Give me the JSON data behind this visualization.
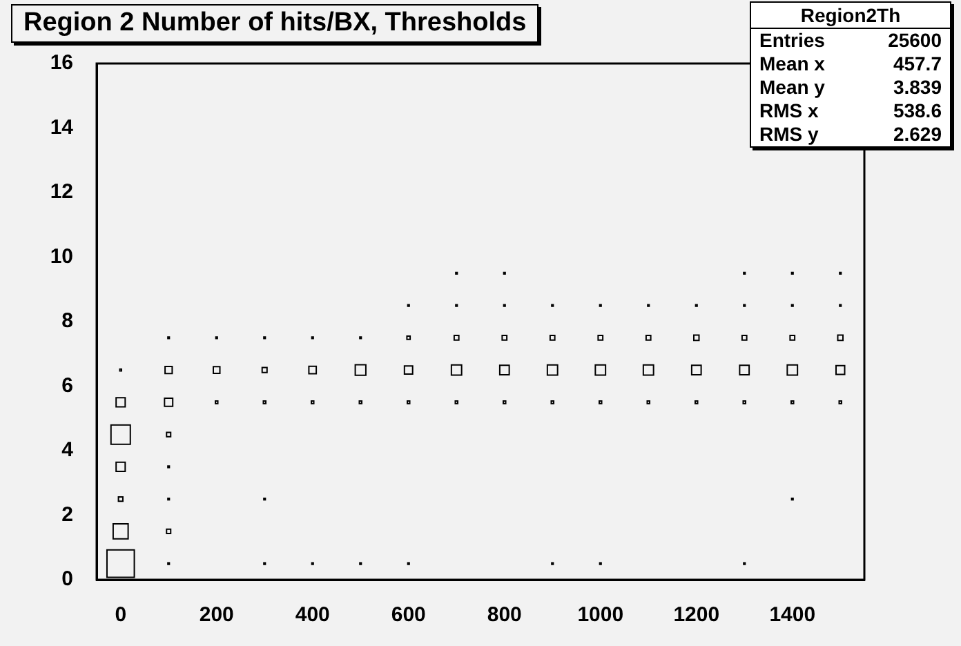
{
  "chart_data": {
    "type": "bubble",
    "title": "Region 2 Number of hits/BX, Thresholds",
    "annotations": [
      "Region2Th",
      "Entries 25600",
      "Mean x 457.7",
      "Mean y 3.839",
      "RMS x 538.6",
      "RMS y 2.629"
    ],
    "xlim": [
      -50,
      1550
    ],
    "xticks": [
      0,
      200,
      400,
      600,
      800,
      1000,
      1200,
      1400
    ],
    "ylim": [
      0,
      16
    ],
    "yticks": [
      0,
      2,
      4,
      6,
      8,
      10,
      12,
      14,
      16
    ],
    "grid": false,
    "legend": false,
    "marker": "square",
    "series": [
      {
        "color": "#000000",
        "x": [
          0,
          0,
          0,
          0,
          0,
          0,
          0,
          100,
          100,
          100,
          100,
          100,
          100,
          100,
          100,
          200,
          200,
          200,
          300,
          300,
          300,
          300,
          300,
          400,
          400,
          400,
          400,
          500,
          500,
          500,
          500,
          600,
          600,
          600,
          600,
          600,
          700,
          700,
          700,
          700,
          700,
          800,
          800,
          800,
          800,
          800,
          900,
          900,
          900,
          900,
          900,
          1000,
          1000,
          1000,
          1000,
          1000,
          1100,
          1100,
          1100,
          1100,
          1200,
          1200,
          1200,
          1200,
          1300,
          1300,
          1300,
          1300,
          1300,
          1300,
          1400,
          1400,
          1400,
          1400,
          1400,
          1400,
          1500,
          1500,
          1500,
          1500,
          1500
        ],
        "values": [
          0.5,
          1.5,
          2.5,
          3.5,
          4.5,
          5.5,
          6.5,
          0.5,
          1.5,
          2.5,
          3.5,
          4.5,
          5.5,
          6.5,
          7.5,
          5.5,
          6.5,
          7.5,
          0.5,
          2.5,
          5.5,
          6.5,
          7.5,
          0.5,
          5.5,
          6.5,
          7.5,
          0.5,
          5.5,
          6.5,
          7.5,
          0.5,
          5.5,
          6.5,
          7.5,
          8.5,
          9.5,
          8.5,
          7.5,
          6.5,
          5.5,
          9.5,
          8.5,
          7.5,
          6.5,
          5.5,
          0.5,
          8.5,
          7.5,
          6.5,
          5.5,
          0.5,
          8.5,
          7.5,
          6.5,
          5.5,
          8.5,
          7.5,
          6.5,
          5.5,
          8.5,
          7.5,
          6.5,
          5.5,
          0.5,
          9.5,
          8.5,
          7.5,
          6.5,
          5.5,
          2.5,
          9.5,
          8.5,
          7.5,
          6.5,
          5.5,
          9.5,
          8.5,
          7.5,
          6.5,
          5.5
        ],
        "sizes": [
          1,
          0.3,
          0.026,
          0.11,
          0.5,
          0.11,
          0.004,
          0.003,
          0.023,
          0.003,
          0.003,
          0.023,
          0.09,
          0.068,
          0.003,
          0.008,
          0.058,
          0.003,
          0.003,
          0.003,
          0.008,
          0.032,
          0.003,
          0.003,
          0.008,
          0.073,
          0.003,
          0.003,
          0.008,
          0.15,
          0.003,
          0.003,
          0.008,
          0.09,
          0.014,
          0.003,
          0.003,
          0.003,
          0.029,
          0.14,
          0.008,
          0.003,
          0.003,
          0.029,
          0.12,
          0.008,
          0.003,
          0.003,
          0.029,
          0.14,
          0.008,
          0.003,
          0.003,
          0.029,
          0.14,
          0.008,
          0.003,
          0.029,
          0.14,
          0.008,
          0.003,
          0.036,
          0.12,
          0.008,
          0.003,
          0.003,
          0.003,
          0.029,
          0.12,
          0.008,
          0.003,
          0.003,
          0.003,
          0.029,
          0.14,
          0.008,
          0.003,
          0.003,
          0.036,
          0.1,
          0.008
        ]
      }
    ]
  }
}
